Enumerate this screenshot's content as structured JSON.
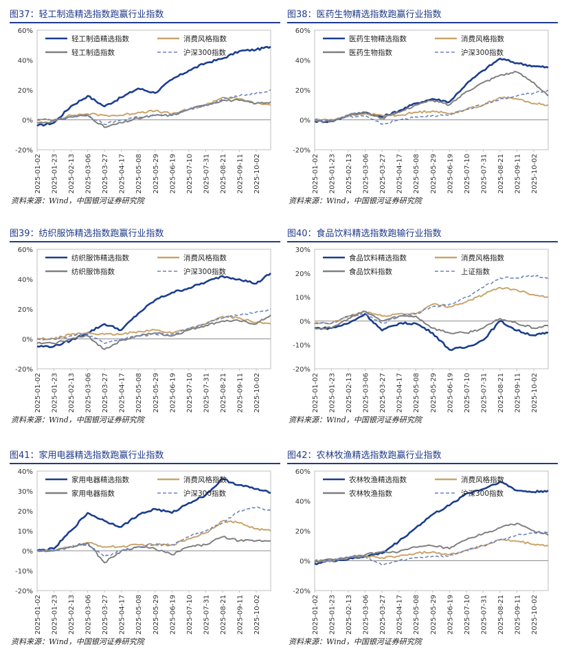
{
  "source_label": "资料来源：Wind，中国银河证券研究院",
  "colors": {
    "selected": "#1a3d8f",
    "style": "#c9a46a",
    "industry": "#7f7f7f",
    "index": "#6b84c0",
    "title": "#1f3a8a"
  },
  "dates": [
    "2025-01-02",
    "2025-01-23",
    "2025-02-13",
    "2025-03-06",
    "2025-03-27",
    "2025-04-17",
    "2025-05-08",
    "2025-05-29",
    "2025-06-19",
    "2025-07-10",
    "2025-07-31",
    "2025-08-21",
    "2025-09-11",
    "2025-10-02"
  ],
  "chart_data": [
    {
      "type": "line",
      "title": "图37：轻工制造精选指数跑赢行业指数",
      "y_ticks": [
        "60%",
        "40%",
        "20%",
        "0%",
        "-20%"
      ],
      "ylim": [
        -20,
        60
      ],
      "x": [
        "2025-01-02",
        "2025-01-23",
        "2025-02-13",
        "2025-03-06",
        "2025-03-27",
        "2025-04-17",
        "2025-05-08",
        "2025-05-29",
        "2025-06-19",
        "2025-07-10",
        "2025-07-31",
        "2025-08-21",
        "2025-09-11",
        "2025-10-02",
        "2025-10-20"
      ],
      "series": [
        {
          "name": "轻工制造精选指数",
          "style": "selected",
          "values": [
            -4,
            -2,
            9,
            16,
            9,
            15,
            21,
            18,
            27,
            33,
            38,
            41,
            46,
            47,
            49
          ]
        },
        {
          "name": "消费风格指数",
          "style": "style",
          "values": [
            0,
            0,
            3,
            4,
            3,
            3,
            5,
            6,
            4,
            7,
            10,
            15,
            14,
            11,
            10
          ]
        },
        {
          "name": "轻工制造指数",
          "style": "industry",
          "values": [
            -2,
            -1,
            2,
            3,
            -5,
            -2,
            1,
            3,
            3,
            7,
            10,
            13,
            13,
            11,
            12
          ]
        },
        {
          "name": "沪深300指数",
          "style": "index",
          "dashed": true,
          "values": [
            0,
            0,
            2,
            3,
            -3,
            0,
            2,
            3,
            3,
            7,
            10,
            14,
            16,
            18,
            20
          ]
        }
      ]
    },
    {
      "type": "line",
      "title": "图38：医药生物精选指数跑赢行业指数",
      "y_ticks": [
        "60%",
        "40%",
        "20%",
        "0%",
        "-20%"
      ],
      "ylim": [
        -20,
        60
      ],
      "x": [
        "2025-01-02",
        "2025-01-23",
        "2025-02-13",
        "2025-03-06",
        "2025-03-27",
        "2025-04-17",
        "2025-05-08",
        "2025-05-29",
        "2025-06-19",
        "2025-07-10",
        "2025-07-31",
        "2025-08-21",
        "2025-09-11",
        "2025-10-02",
        "2025-10-20"
      ],
      "series": [
        {
          "name": "医药生物精选指数",
          "style": "selected",
          "values": [
            -1,
            -1,
            3,
            5,
            2,
            6,
            11,
            14,
            12,
            24,
            33,
            41,
            38,
            36,
            35
          ]
        },
        {
          "name": "消费风格指数",
          "style": "style",
          "values": [
            0,
            0,
            3,
            4,
            3,
            3,
            5,
            6,
            4,
            7,
            10,
            15,
            14,
            11,
            10
          ]
        },
        {
          "name": "医药生物指数",
          "style": "industry",
          "values": [
            -1,
            -1,
            3,
            5,
            1,
            5,
            10,
            13,
            10,
            19,
            25,
            30,
            32,
            25,
            16
          ]
        },
        {
          "name": "沪深300指数",
          "style": "index",
          "dashed": true,
          "values": [
            0,
            0,
            2,
            3,
            -3,
            0,
            2,
            3,
            3,
            7,
            10,
            14,
            16,
            18,
            20
          ]
        }
      ]
    },
    {
      "type": "line",
      "title": "图39：纺织服饰精选指数跑赢行业指数",
      "y_ticks": [
        "60%",
        "40%",
        "20%",
        "0%",
        "-20%"
      ],
      "ylim": [
        -20,
        60
      ],
      "x": [
        "2025-01-02",
        "2025-01-23",
        "2025-02-13",
        "2025-03-06",
        "2025-03-27",
        "2025-04-17",
        "2025-05-08",
        "2025-05-29",
        "2025-06-19",
        "2025-07-10",
        "2025-07-31",
        "2025-08-21",
        "2025-09-11",
        "2025-10-02",
        "2025-10-20"
      ],
      "series": [
        {
          "name": "纺织服饰精选指数",
          "style": "selected",
          "values": [
            -5,
            -5,
            -1,
            4,
            10,
            6,
            17,
            26,
            31,
            34,
            38,
            42,
            40,
            37,
            44
          ]
        },
        {
          "name": "消费风格指数",
          "style": "style",
          "values": [
            0,
            0,
            3,
            4,
            3,
            3,
            5,
            6,
            4,
            7,
            10,
            15,
            14,
            11,
            10
          ]
        },
        {
          "name": "纺织服饰指数",
          "style": "industry",
          "values": [
            -3,
            -3,
            0,
            2,
            -7,
            -1,
            2,
            4,
            2,
            6,
            9,
            12,
            12,
            10,
            16
          ]
        },
        {
          "name": "沪深300指数",
          "style": "index",
          "dashed": true,
          "values": [
            0,
            0,
            2,
            3,
            -3,
            0,
            2,
            3,
            3,
            7,
            10,
            14,
            16,
            18,
            20
          ]
        }
      ]
    },
    {
      "type": "line",
      "title": "图40：食品饮料精选指数跑输行业指数",
      "y_ticks": [
        "30%",
        "20%",
        "10%",
        "0%",
        "-10%",
        "-20%"
      ],
      "ylim": [
        -20,
        30
      ],
      "x": [
        "2025-01-02",
        "2025-01-23",
        "2025-02-13",
        "2025-03-06",
        "2025-03-27",
        "2025-04-17",
        "2025-05-08",
        "2025-05-29",
        "2025-06-19",
        "2025-07-10",
        "2025-07-31",
        "2025-08-21",
        "2025-09-11",
        "2025-10-02",
        "2025-10-20"
      ],
      "series": [
        {
          "name": "食品饮料精选指数",
          "style": "selected",
          "values": [
            -3,
            -3,
            -1,
            3,
            -4,
            -1,
            -1,
            -5,
            -12,
            -11,
            -8,
            0,
            -4,
            -6,
            -5
          ]
        },
        {
          "name": "消费风格指数",
          "style": "style",
          "values": [
            -1,
            -1,
            2,
            4,
            2,
            3,
            3,
            7,
            6,
            8,
            11,
            14,
            13,
            11,
            10
          ]
        },
        {
          "name": "食品饮料指数",
          "style": "industry",
          "values": [
            -3,
            -3,
            1,
            4,
            0,
            2,
            2,
            -3,
            -5,
            -5,
            -3,
            1,
            -1,
            -3,
            -2
          ]
        },
        {
          "name": "上证指数",
          "style": "index",
          "dashed": true,
          "values": [
            -1,
            -1,
            2,
            3,
            -1,
            2,
            3,
            6,
            7,
            10,
            14,
            18,
            18,
            19,
            18
          ]
        }
      ]
    },
    {
      "type": "line",
      "title": "图41：家用电器精选指数跑赢行业指数",
      "y_ticks": [
        "40%",
        "30%",
        "20%",
        "10%",
        "0%",
        "-10%",
        "-20%"
      ],
      "ylim": [
        -20,
        40
      ],
      "x": [
        "2025-01-02",
        "2025-01-23",
        "2025-02-13",
        "2025-03-06",
        "2025-03-27",
        "2025-04-17",
        "2025-05-08",
        "2025-05-29",
        "2025-06-19",
        "2025-07-10",
        "2025-07-31",
        "2025-08-21",
        "2025-09-11",
        "2025-10-02",
        "2025-10-20"
      ],
      "series": [
        {
          "name": "家用电器精选指数",
          "style": "selected",
          "values": [
            0,
            1,
            10,
            19,
            15,
            12,
            18,
            21,
            19,
            24,
            28,
            36,
            33,
            31,
            29
          ]
        },
        {
          "name": "消费风格指数",
          "style": "style",
          "values": [
            0,
            0,
            2,
            4,
            2,
            2,
            3,
            3,
            3,
            6,
            9,
            15,
            14,
            11,
            10
          ]
        },
        {
          "name": "家用电器指数",
          "style": "industry",
          "values": [
            0,
            0,
            2,
            4,
            -6,
            0,
            2,
            1,
            -2,
            2,
            3,
            7,
            5,
            5,
            5
          ]
        },
        {
          "name": "沪深300指数",
          "style": "index",
          "dashed": true,
          "values": [
            0,
            0,
            2,
            3,
            -3,
            0,
            2,
            3,
            3,
            7,
            10,
            14,
            20,
            22,
            20
          ]
        }
      ]
    },
    {
      "type": "line",
      "title": "图42：农林牧渔精选指数跑赢行业指数",
      "y_ticks": [
        "60%",
        "40%",
        "20%",
        "0%",
        "-20%"
      ],
      "ylim": [
        -20,
        60
      ],
      "x": [
        "2025-01-02",
        "2025-01-23",
        "2025-02-13",
        "2025-03-06",
        "2025-03-27",
        "2025-04-17",
        "2025-05-08",
        "2025-05-29",
        "2025-06-19",
        "2025-07-10",
        "2025-07-31",
        "2025-08-21",
        "2025-09-11",
        "2025-10-02",
        "2025-10-20"
      ],
      "series": [
        {
          "name": "农林牧渔精选指数",
          "style": "selected",
          "values": [
            -2,
            0,
            1,
            3,
            5,
            13,
            22,
            31,
            37,
            45,
            48,
            53,
            47,
            46,
            47
          ]
        },
        {
          "name": "消费风格指数",
          "style": "style",
          "values": [
            0,
            0,
            2,
            3,
            2,
            3,
            5,
            6,
            4,
            7,
            10,
            14,
            13,
            11,
            10
          ]
        },
        {
          "name": "农林牧渔指数",
          "style": "industry",
          "values": [
            -1,
            1,
            2,
            4,
            6,
            6,
            9,
            10,
            8,
            14,
            18,
            22,
            25,
            20,
            17
          ]
        },
        {
          "name": "沪深300指数",
          "style": "index",
          "dashed": true,
          "values": [
            0,
            0,
            2,
            3,
            -3,
            0,
            2,
            3,
            3,
            7,
            10,
            14,
            17,
            19,
            19
          ]
        }
      ]
    }
  ]
}
